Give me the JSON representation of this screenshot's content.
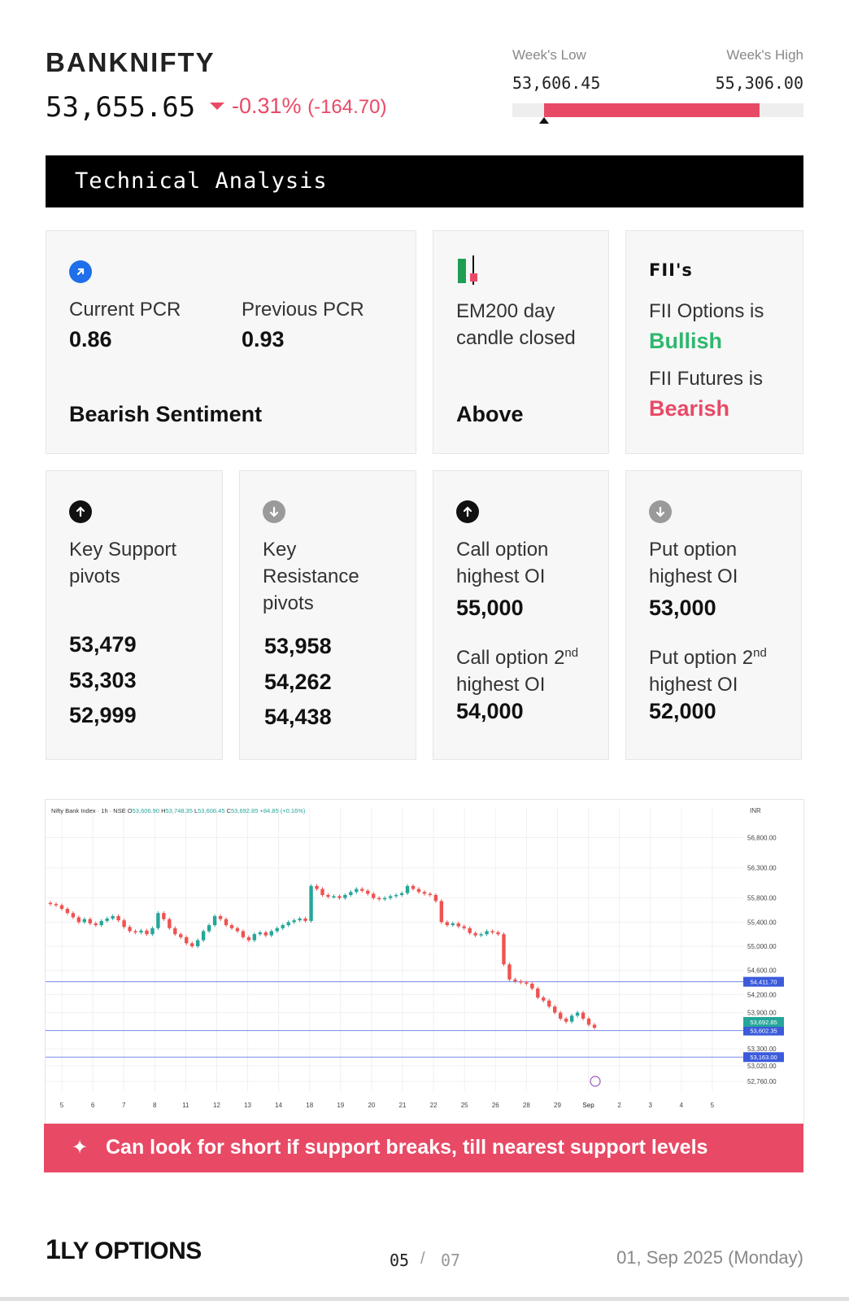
{
  "header": {
    "ticker": "BANKNIFTY",
    "price": "53,655.65",
    "change_pct": "-0.31%",
    "change_pts": "(-164.70)",
    "week_low_label": "Week's Low",
    "week_high_label": "Week's High",
    "week_low": "53,606.45",
    "week_high": "55,306.00",
    "range_bar": {
      "fill_start": 0.11,
      "fill_end": 0.85,
      "current_marker": 0.11
    },
    "accent_color": "#e84a66"
  },
  "banner": {
    "title": "Technical Analysis"
  },
  "pcr_card": {
    "icon": "trend-up-arrow-icon",
    "current_label": "Current PCR",
    "current_value": "0.86",
    "previous_label": "Previous PCR",
    "previous_value": "0.93",
    "sentiment": "Bearish Sentiment"
  },
  "ema_card": {
    "icon": "candlestick-icon",
    "label": "EM200 day candle closed",
    "value": "Above"
  },
  "fii_card": {
    "heading": "FII's",
    "options_label": "FII Options is",
    "options_value": "Bullish",
    "futures_label": "FII Futures is",
    "futures_value": "Bearish",
    "bullish_color": "#2eb86e",
    "bearish_color": "#e84a66"
  },
  "support_card": {
    "icon": "arrow-up-icon",
    "label": "Key Support pivots",
    "values": [
      "53,479",
      "53,303",
      "52,999"
    ]
  },
  "resistance_card": {
    "icon": "arrow-down-icon",
    "label": "Key Resistance pivots",
    "values": [
      "53,958",
      "54,262",
      "54,438"
    ]
  },
  "call_card": {
    "icon": "arrow-up-icon",
    "label": "Call option highest OI",
    "value": "55,000",
    "label2_pre": "Call option 2",
    "label2_sup": "nd",
    "label2_post": "highest OI",
    "value2": "54,000"
  },
  "put_card": {
    "icon": "arrow-down-icon",
    "label": "Put option highest OI",
    "value": "53,000",
    "label2_pre": "Put option 2",
    "label2_sup": "nd",
    "label2_post": "highest OI",
    "value2": "52,000"
  },
  "chart_data": {
    "type": "candlestick",
    "title": "Nifty Bank Index · 1h · NSE",
    "ohlc_readout": {
      "O": "53,606.90",
      "H": "53,748.35",
      "L": "53,606.45",
      "C": "53,692.85",
      "chg": "+84.85 (+0.16%)"
    },
    "currency": "INR",
    "y_ticks": [
      56800,
      56300,
      55800,
      55400,
      55000,
      54600,
      54200,
      53900,
      53300,
      53020,
      52760
    ],
    "y_tick_labels": [
      "56,800.00",
      "56,300.00",
      "55,800.00",
      "55,400.00",
      "55,000.00",
      "54,600.00",
      "54,200.00",
      "53,900.00",
      "53,300.00",
      "53,020.00",
      "52,760.00"
    ],
    "ylim": [
      52600,
      57050
    ],
    "x_ticks": [
      "5",
      "6",
      "7",
      "8",
      "11",
      "12",
      "13",
      "14",
      "18",
      "19",
      "20",
      "21",
      "22",
      "25",
      "26",
      "28",
      "29",
      "Sep",
      "2",
      "3",
      "4",
      "5"
    ],
    "horizontal_levels": [
      {
        "value": 54411.7,
        "label": "54,411.70",
        "color": "#3b5bdb"
      },
      {
        "value": 53602.35,
        "label": "53,602.35",
        "color": "#3b5bdb"
      },
      {
        "value": 53163.0,
        "label": "53,163.00",
        "color": "#3b5bdb"
      }
    ],
    "price_badge": {
      "value": 53692.85,
      "label": "53,692.85",
      "color": "#26a69a"
    },
    "closes": [
      55700,
      55680,
      55620,
      55550,
      55480,
      55400,
      55450,
      55380,
      55350,
      55420,
      55460,
      55500,
      55430,
      55320,
      55250,
      55230,
      55260,
      55200,
      55300,
      55550,
      55450,
      55300,
      55200,
      55150,
      55050,
      55000,
      55100,
      55250,
      55350,
      55500,
      55450,
      55350,
      55300,
      55250,
      55150,
      55100,
      55200,
      55230,
      55180,
      55250,
      55300,
      55350,
      55400,
      55430,
      55460,
      55420,
      56000,
      55950,
      55850,
      55820,
      55830,
      55800,
      55850,
      55900,
      55950,
      55920,
      55870,
      55800,
      55780,
      55800,
      55830,
      55850,
      55880,
      56000,
      55950,
      55900,
      55870,
      55850,
      55750,
      55400,
      55350,
      55380,
      55330,
      55300,
      55220,
      55180,
      55200,
      55250,
      55230,
      55200,
      54700,
      54450,
      54420,
      54400,
      54380,
      54300,
      54150,
      54100,
      54000,
      53900,
      53800,
      53750,
      53850,
      53900,
      53800,
      53700,
      53650
    ],
    "up_color": "#26a69a",
    "down_color": "#ef5350"
  },
  "tip": {
    "icon": "sparkle-icon",
    "text": "Can look for short if support breaks, till nearest support levels"
  },
  "footer": {
    "brand_one": "1",
    "brand_rest": "LY OPTIONS",
    "page_current": "05",
    "page_sep": "/",
    "page_total": "07",
    "date": "01, Sep 2025 (Monday)"
  }
}
